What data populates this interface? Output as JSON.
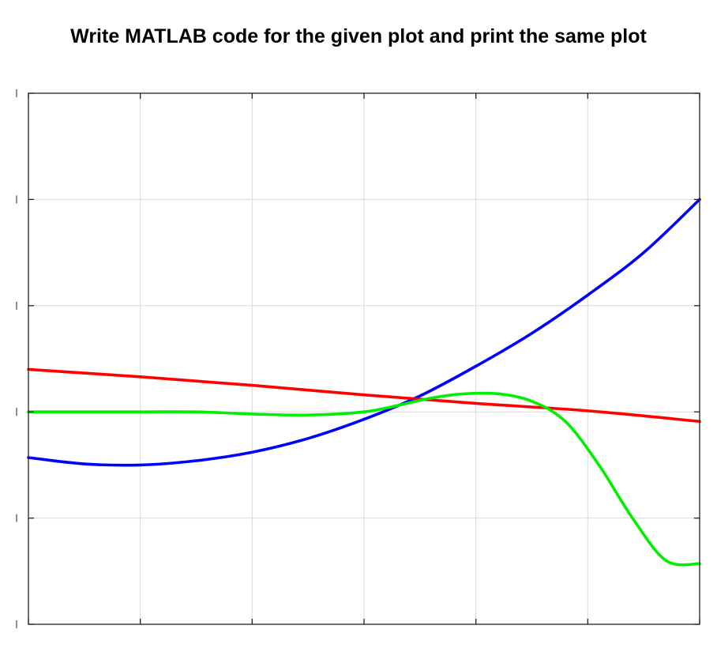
{
  "prompt": "Write MATLAB code for the given plot and print the same plot",
  "chart_data": {
    "type": "line",
    "title": "",
    "xlabel": "",
    "ylabel": "",
    "grid": true,
    "xlim": [
      0,
      6
    ],
    "ylim": [
      -2,
      3
    ],
    "x_ticks": [
      0,
      1,
      2,
      3,
      4,
      5,
      6
    ],
    "y_ticks": [
      -2,
      -1,
      0,
      1,
      2,
      3
    ],
    "series": [
      {
        "color": "#0000ff",
        "x": [
          0,
          0.5,
          1,
          1.5,
          2,
          2.5,
          3,
          3.5,
          4,
          4.5,
          5,
          5.5,
          6
        ],
        "y": [
          -0.43,
          -0.49,
          -0.5,
          -0.46,
          -0.38,
          -0.25,
          -0.07,
          0.15,
          0.43,
          0.74,
          1.1,
          1.5,
          2.0
        ]
      },
      {
        "color": "#ff0000",
        "x": [
          0,
          1,
          2,
          3,
          4,
          5,
          6
        ],
        "y": [
          0.4,
          0.33,
          0.25,
          0.16,
          0.08,
          0.01,
          -0.09
        ]
      },
      {
        "color": "#00ee00",
        "x": [
          0,
          0.5,
          1,
          1.5,
          2,
          2.5,
          3,
          3.3,
          3.6,
          3.9,
          4.2,
          4.5,
          4.8,
          5.1,
          5.4,
          5.7,
          6
        ],
        "y": [
          0.0,
          0.0,
          0.0,
          0.0,
          -0.02,
          -0.03,
          0.0,
          0.06,
          0.13,
          0.17,
          0.17,
          0.1,
          -0.09,
          -0.5,
          -1.0,
          -1.4,
          -1.43
        ]
      }
    ]
  }
}
